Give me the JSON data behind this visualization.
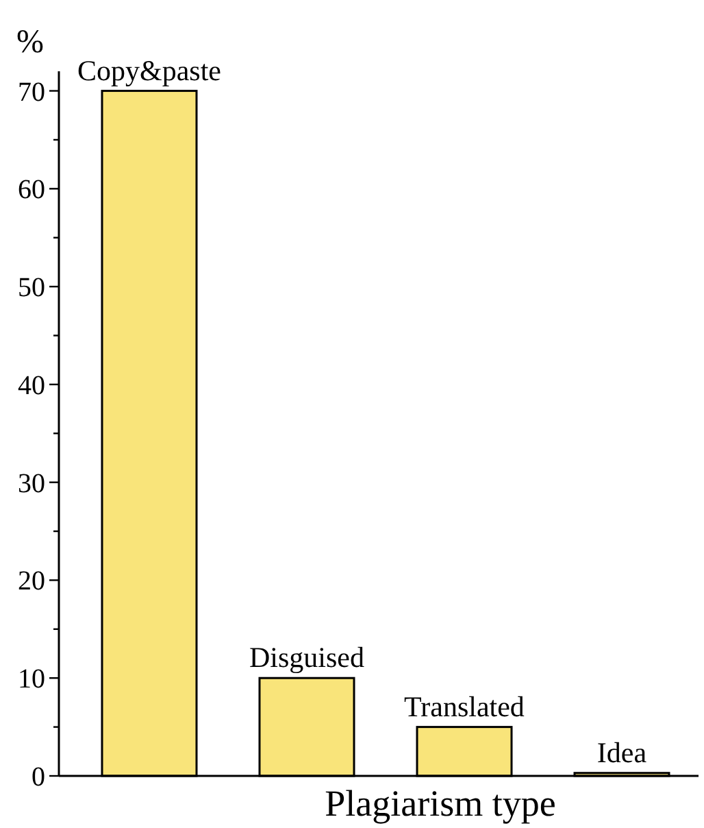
{
  "chart_data": {
    "type": "bar",
    "xlabel": "Plagiarism type",
    "ylabel": "%",
    "categories": [
      "Copy&paste",
      "Disguised",
      "Translated",
      "Idea"
    ],
    "values": [
      70,
      10,
      5,
      0.3
    ],
    "color": "#f9e47a",
    "ylim": [
      0,
      72
    ],
    "yticks": [
      0,
      {
        "value": 5,
        "label": null
      },
      10,
      {
        "value": 15,
        "label": null
      },
      20,
      {
        "value": 25,
        "label": null
      },
      30,
      {
        "value": 35,
        "label": null
      },
      40,
      {
        "value": 45,
        "label": null
      },
      50,
      {
        "value": 55,
        "label": null
      },
      60,
      {
        "value": 65,
        "label": null
      },
      70
    ]
  }
}
